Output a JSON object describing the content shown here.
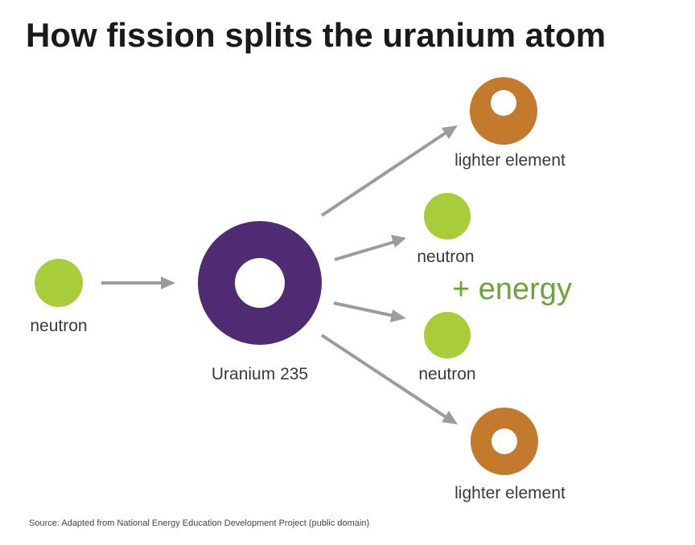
{
  "title": "How fission splits the uranium atom",
  "nodes": {
    "incoming_neutron_label": "neutron",
    "uranium_label": "Uranium 235",
    "top_lighter_label": "lighter element",
    "upper_neutron_label": "neutron",
    "lower_neutron_label": "neutron",
    "bottom_lighter_label": "lighter element"
  },
  "energy_label": "+ energy",
  "source": "Source: Adapted from National Energy Education Development Project (public domain)",
  "colors": {
    "neutron": "#a8cc3a",
    "uranium": "#4f2b73",
    "lighter_element": "#c47a2c",
    "energy_text": "#6aa53a",
    "arrow": "#9c9c9c"
  }
}
